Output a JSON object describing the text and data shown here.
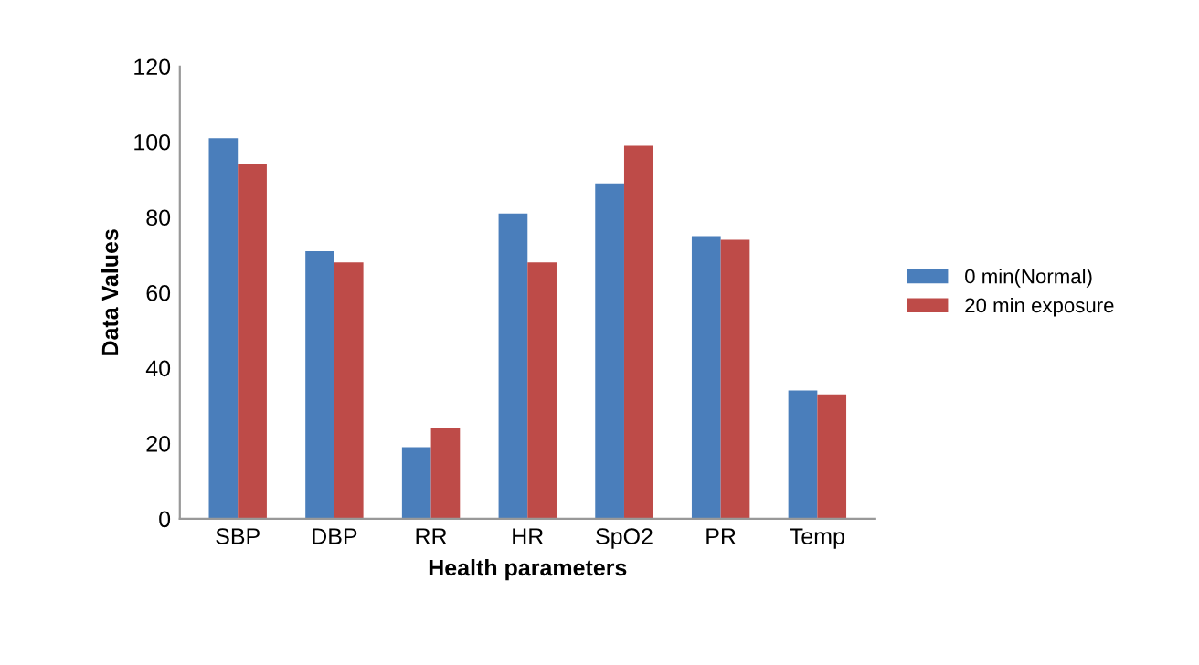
{
  "chart_data": {
    "type": "bar",
    "xlabel": "Health parameters",
    "ylabel": "Data Values",
    "categories": [
      "SBP",
      "DBP",
      "RR",
      "HR",
      "SpO2",
      "PR",
      "Temp"
    ],
    "series": [
      {
        "name": "0 min(Normal)",
        "color": "#4a7ebb",
        "values": [
          101,
          71,
          19,
          81,
          89,
          75,
          34
        ]
      },
      {
        "name": "20 min exposure",
        "color": "#be4b48",
        "values": [
          94,
          68,
          24,
          68,
          99,
          74,
          33
        ]
      }
    ],
    "ylim": [
      0,
      120
    ],
    "yticks": [
      0,
      20,
      40,
      60,
      80,
      100,
      120
    ],
    "grid": false,
    "legend": "right"
  }
}
